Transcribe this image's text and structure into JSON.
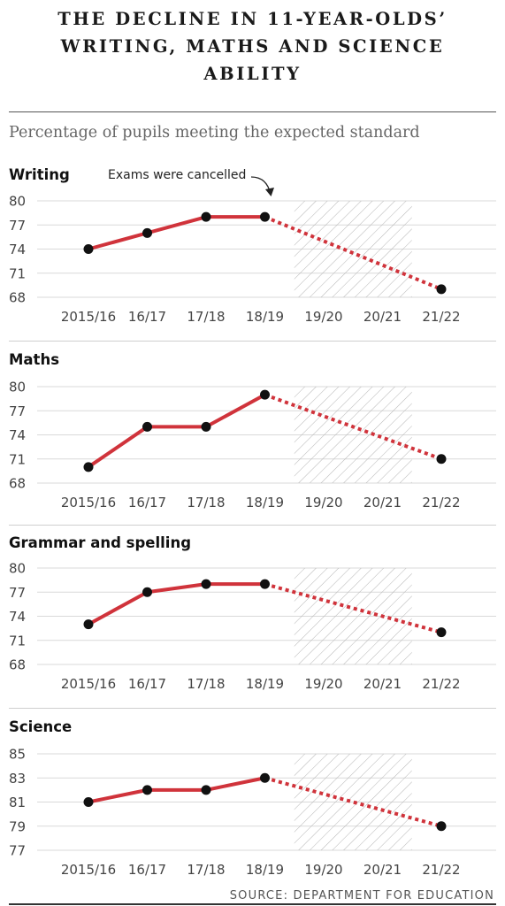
{
  "title": {
    "line1": "THE DECLINE IN 11-YEAR-OLDS’",
    "line2": "WRITING, MATHS AND SCIENCE",
    "line3": "ABILITY"
  },
  "subtitle": "Percentage of pupils meeting the expected standard",
  "annotation": "Exams were cancelled",
  "source": "SOURCE: DEPARTMENT FOR EDUCATION",
  "colors": {
    "line": "#d0333b",
    "point": "#111111",
    "grid": "#d9d9d9",
    "hatch": "#b5b5b5"
  },
  "chart_data": [
    {
      "type": "line",
      "title": "Writing",
      "categories": [
        "2015/16",
        "16/17",
        "17/18",
        "18/19",
        "19/20",
        "20/21",
        "21/22"
      ],
      "values": [
        74,
        76,
        78,
        78,
        null,
        null,
        69
      ],
      "yticks": [
        68,
        71,
        74,
        77,
        80
      ],
      "ylim": [
        68,
        80
      ],
      "cancelled": [
        "19/20",
        "20/21"
      ]
    },
    {
      "type": "line",
      "title": "Maths",
      "categories": [
        "2015/16",
        "16/17",
        "17/18",
        "18/19",
        "19/20",
        "20/21",
        "21/22"
      ],
      "values": [
        70,
        75,
        75,
        79,
        null,
        null,
        71
      ],
      "yticks": [
        68,
        71,
        74,
        77,
        80
      ],
      "ylim": [
        68,
        80
      ],
      "cancelled": [
        "19/20",
        "20/21"
      ]
    },
    {
      "type": "line",
      "title": "Grammar and spelling",
      "categories": [
        "2015/16",
        "16/17",
        "17/18",
        "18/19",
        "19/20",
        "20/21",
        "21/22"
      ],
      "values": [
        73,
        77,
        78,
        78,
        null,
        null,
        72
      ],
      "yticks": [
        68,
        71,
        74,
        77,
        80
      ],
      "ylim": [
        68,
        80
      ],
      "cancelled": [
        "19/20",
        "20/21"
      ]
    },
    {
      "type": "line",
      "title": "Science",
      "categories": [
        "2015/16",
        "16/17",
        "17/18",
        "18/19",
        "19/20",
        "20/21",
        "21/22"
      ],
      "values": [
        81,
        82,
        82,
        83,
        null,
        null,
        79
      ],
      "yticks": [
        77,
        79,
        81,
        83,
        85
      ],
      "ylim": [
        77,
        85
      ],
      "cancelled": [
        "19/20",
        "20/21"
      ]
    }
  ]
}
